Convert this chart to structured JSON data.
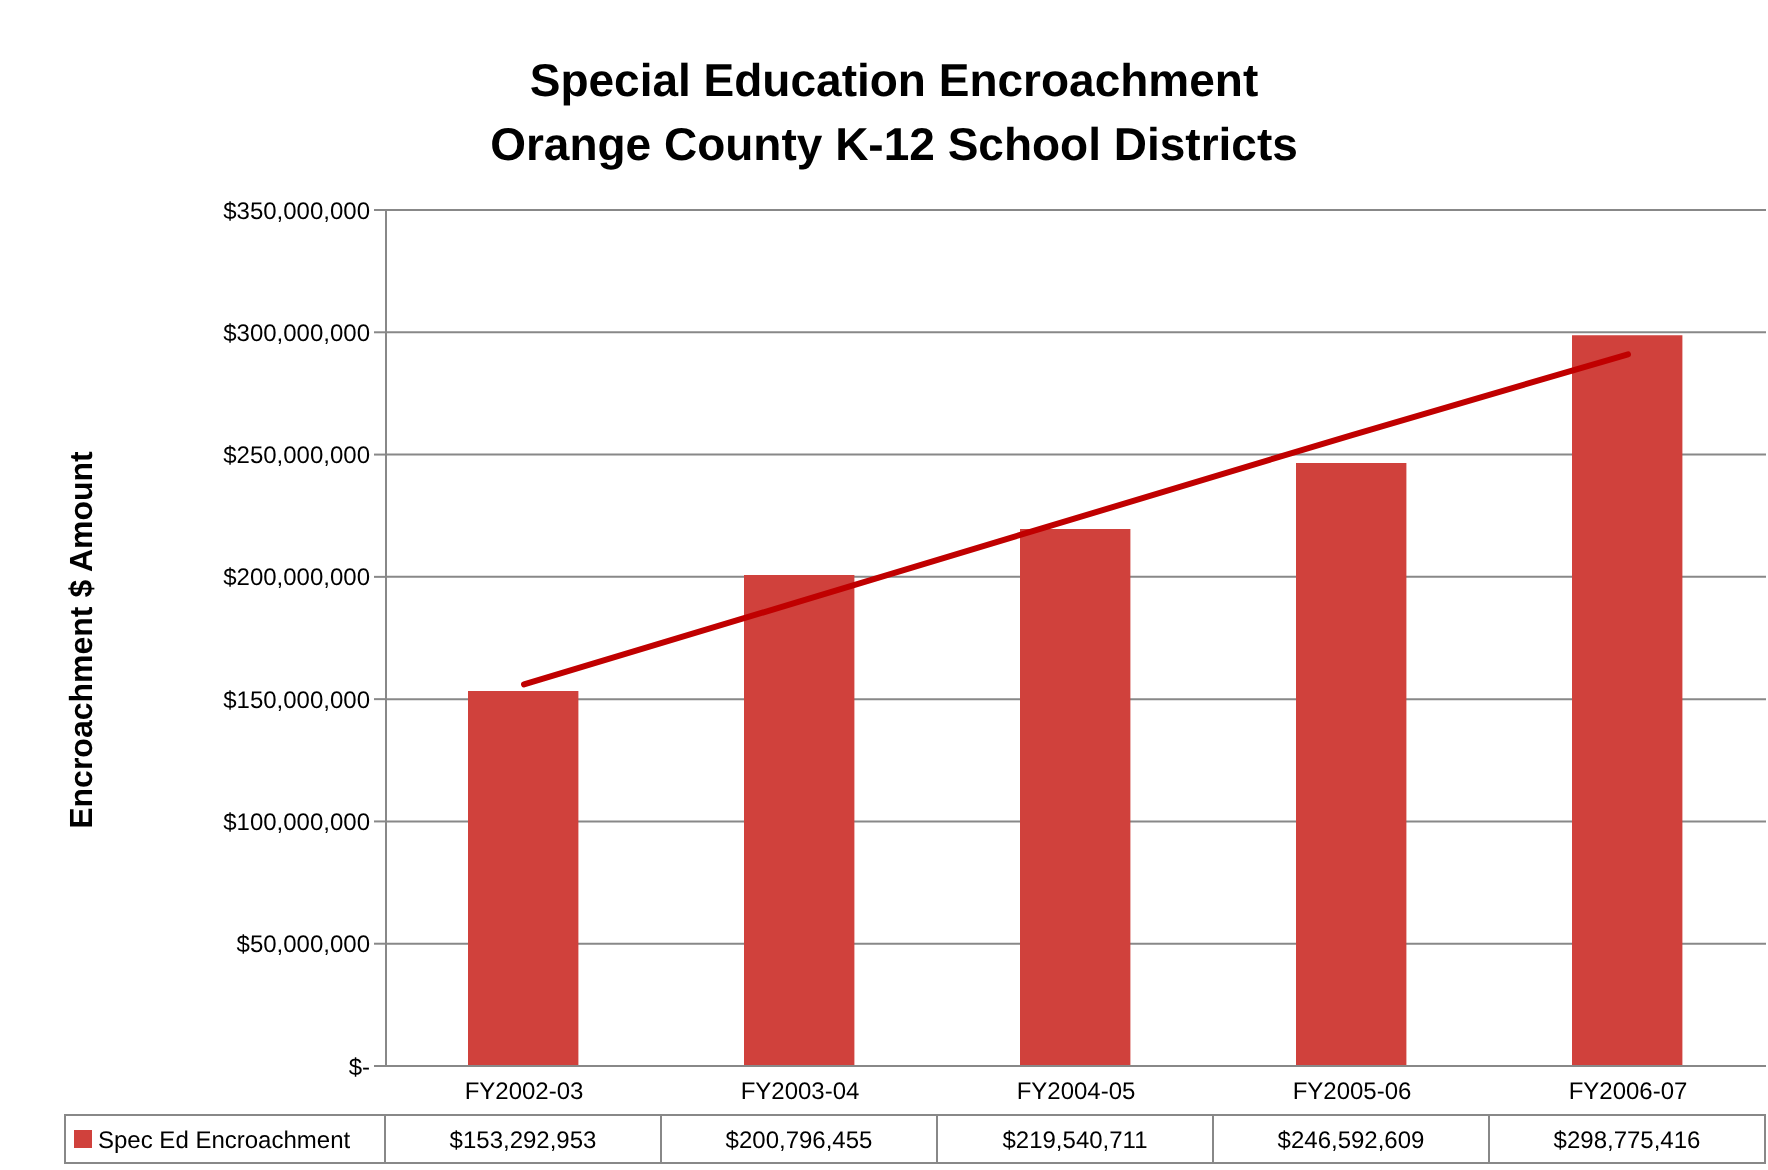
{
  "chart_data": {
    "type": "bar",
    "title": "Special Education Encroachment",
    "subtitle": "Orange County K-12 School Districts",
    "ylabel": "Encroachment $ Amount",
    "categories": [
      "FY2002-03",
      "FY2003-04",
      "FY2004-05",
      "FY2005-06",
      "FY2006-07"
    ],
    "series": [
      {
        "name": "Spec Ed Encroachment",
        "color": "#d0413c",
        "values": [
          153292953,
          200796455,
          219540711,
          246592609,
          298775416
        ],
        "value_labels": [
          "$153,292,953",
          "$200,796,455",
          "$219,540,711",
          "$246,592,609",
          "$298,775,416"
        ]
      },
      {
        "type": "line",
        "color": "#c00000",
        "values": [
          156000000,
          190000000,
          224000000,
          258000000,
          291000000
        ]
      }
    ],
    "ylim": [
      0,
      350000000
    ],
    "yticks": [
      {
        "value": 0,
        "label": "$-"
      },
      {
        "value": 50000000,
        "label": "$50,000,000"
      },
      {
        "value": 100000000,
        "label": "$100,000,000"
      },
      {
        "value": 150000000,
        "label": "$150,000,000"
      },
      {
        "value": 200000000,
        "label": "$200,000,000"
      },
      {
        "value": 250000000,
        "label": "$250,000,000"
      },
      {
        "value": 300000000,
        "label": "$300,000,000"
      },
      {
        "value": 350000000,
        "label": "$350,000,000"
      }
    ],
    "grid": "y",
    "legend": "bottom"
  }
}
